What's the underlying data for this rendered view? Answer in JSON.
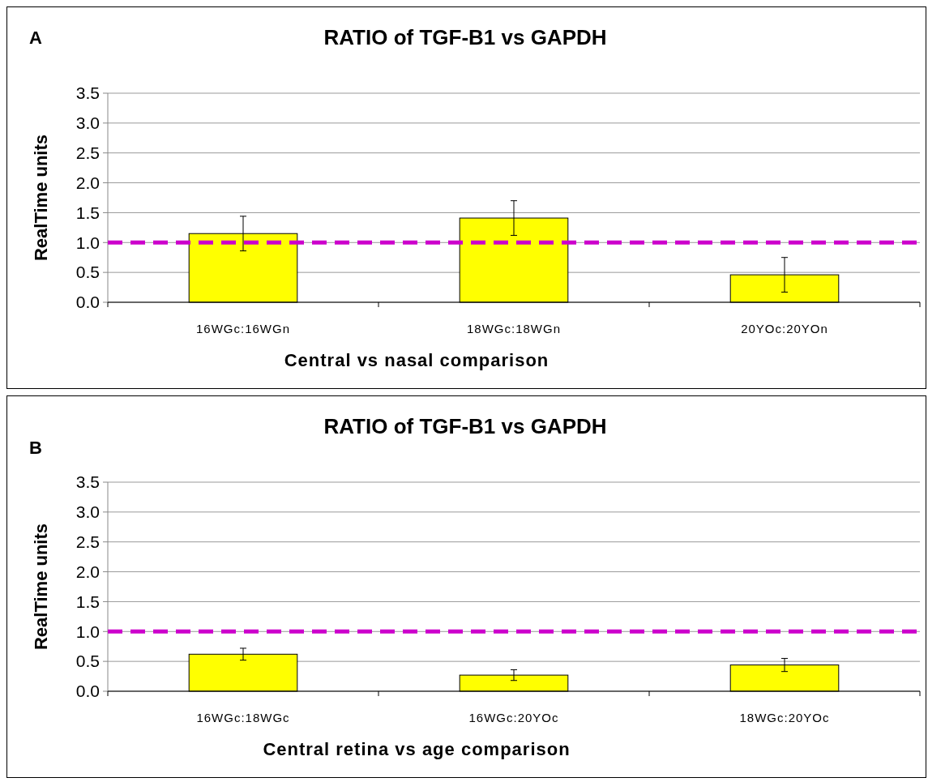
{
  "chart_data": [
    {
      "type": "bar",
      "title": "RATIO of TGF-B1 vs GAPDH",
      "xlabel": "Central vs nasal comparison",
      "ylabel": "RealTime units",
      "annotations": [
        "A"
      ],
      "categories": [
        "16WGc:16WGn",
        "18WGc:18WGn",
        "20YOc:20YOn"
      ],
      "values": [
        1.15,
        1.41,
        0.46
      ],
      "errors": [
        0.29,
        0.29,
        0.29
      ],
      "color": "#ffff00",
      "ylim": [
        0,
        3.5
      ],
      "yticks": [
        {
          "value": 0,
          "label": "0.0"
        },
        {
          "value": 0.5,
          "label": "0.5"
        },
        {
          "value": 1,
          "label": "1.0"
        },
        {
          "value": 1.5,
          "label": "1.5"
        },
        {
          "value": 2,
          "label": "2.0"
        },
        {
          "value": 2.5,
          "label": "2.5"
        },
        {
          "value": 3,
          "label": "3.0"
        },
        {
          "value": 3.5,
          "label": "3.5"
        }
      ],
      "grid": "y",
      "ref_lines": [
        {
          "axis": "y",
          "value": 1,
          "color": "#cc00cc",
          "line_style": "dashed"
        }
      ]
    },
    {
      "type": "bar",
      "title": "RATIO of TGF-B1 vs GAPDH",
      "xlabel": "Central retina vs age comparison",
      "ylabel": "RealTime units",
      "annotations": [
        "B"
      ],
      "categories": [
        "16WGc:18WGc",
        "16WGc:20YOc",
        "18WGc:20YOc"
      ],
      "values": [
        0.62,
        0.27,
        0.44
      ],
      "errors": [
        0.1,
        0.09,
        0.11
      ],
      "color": "#ffff00",
      "ylim": [
        0,
        3.5
      ],
      "yticks": [
        {
          "value": 0,
          "label": "0.0"
        },
        {
          "value": 0.5,
          "label": "0.5"
        },
        {
          "value": 1,
          "label": "1.0"
        },
        {
          "value": 1.5,
          "label": "1.5"
        },
        {
          "value": 2,
          "label": "2.0"
        },
        {
          "value": 2.5,
          "label": "2.5"
        },
        {
          "value": 3,
          "label": "3.0"
        },
        {
          "value": 3.5,
          "label": "3.5"
        }
      ],
      "grid": "y",
      "ref_lines": [
        {
          "axis": "y",
          "value": 1,
          "color": "#cc00cc",
          "line_style": "dashed"
        }
      ]
    }
  ]
}
